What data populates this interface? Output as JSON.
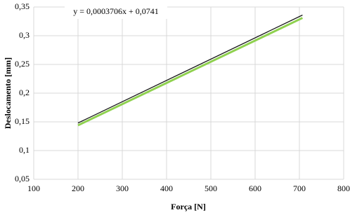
{
  "chart_data": {
    "type": "line",
    "xlabel": "Força [N]",
    "ylabel": "Deslocamento [mm]",
    "annotation": "y = 0,0003706x + 0,0741",
    "xlim": [
      100,
      800
    ],
    "xticks": [
      100,
      200,
      300,
      400,
      500,
      600,
      700,
      800
    ],
    "ylim": [
      0.05,
      0.35
    ],
    "yticks": [
      {
        "value": 0.05,
        "label": "0,05"
      },
      {
        "value": 0.1,
        "label": "0,1"
      },
      {
        "value": 0.15,
        "label": "0,15"
      },
      {
        "value": 0.2,
        "label": "0,2"
      },
      {
        "value": 0.25,
        "label": "0,25"
      },
      {
        "value": 0.3,
        "label": "0,3"
      },
      {
        "value": 0.35,
        "label": "0,35"
      }
    ],
    "grid": true,
    "series": [
      {
        "color": "#8fd14f",
        "x": [
          200,
          707
        ],
        "values": [
          0.144,
          0.331
        ]
      },
      {
        "color": "#1a1a1a",
        "x": [
          200,
          707
        ],
        "values": [
          0.148,
          0.336
        ]
      }
    ]
  }
}
